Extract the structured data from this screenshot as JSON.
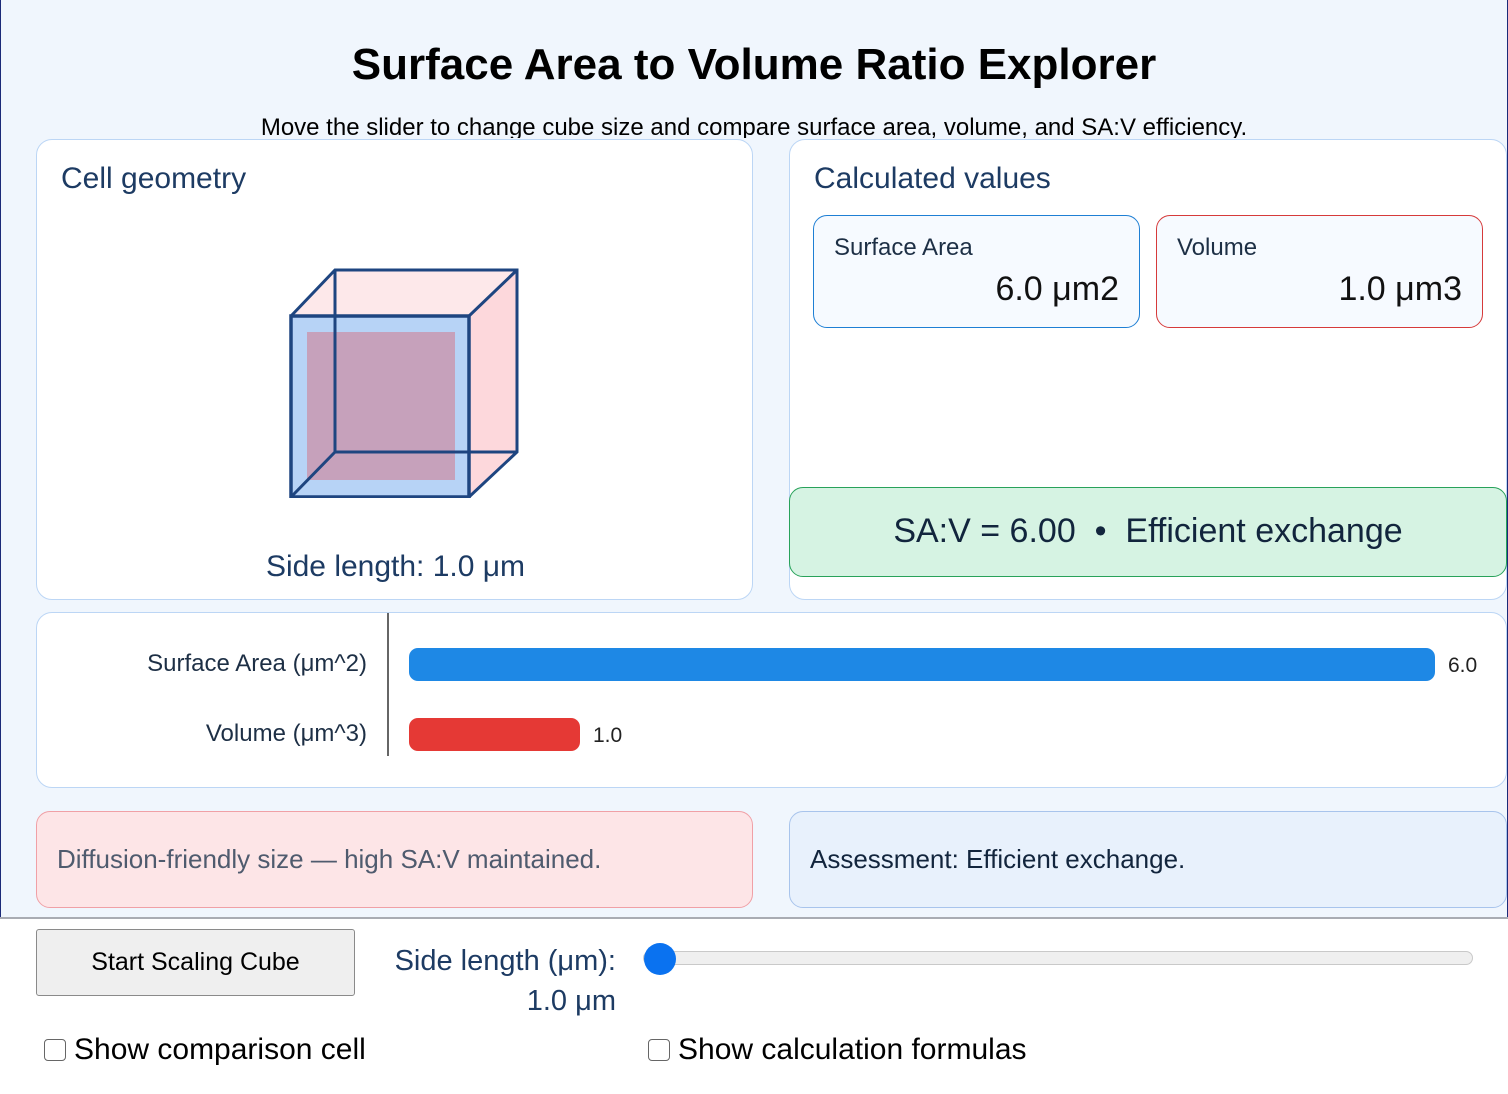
{
  "header": {
    "title": "Surface Area to Volume Ratio Explorer",
    "subtitle": "Move the slider to change cube size and compare surface area, volume, and SA:V efficiency."
  },
  "geometry": {
    "title": "Cell geometry",
    "side_caption": "Side length: 1.0 μm",
    "front_face_color": "#b7d3f6",
    "side_face_color": "#fde0e2",
    "edge_color": "#1e4580"
  },
  "values": {
    "title": "Calculated values",
    "surface_area": {
      "label": "Surface Area",
      "value": "6.0 μm2",
      "border_color": "#1e7fd4"
    },
    "volume": {
      "label": "Volume",
      "value": "1.0 μm3",
      "border_color": "#d63a3a"
    },
    "ratio_text": "SA:V = 6.00  •  Efficient exchange",
    "ratio_color": "#28a25a"
  },
  "bars": {
    "max_value": 6.0,
    "items": [
      {
        "label": "Surface Area (μm^2)",
        "value": 6.0,
        "value_label": "6.0",
        "color": "#1e88e5"
      },
      {
        "label": "Volume (μm^3)",
        "value": 1.0,
        "value_label": "1.0",
        "color": "#e53935"
      }
    ]
  },
  "notes": {
    "left": "Diffusion-friendly size — high SA:V maintained.",
    "right": "Assessment: Efficient exchange."
  },
  "controls": {
    "start_button": "Start Scaling Cube",
    "slider_label": "Side length (μm):",
    "slider_value": "1.0 μm",
    "slider_min": 1,
    "slider_max": 10,
    "slider_current": 1.0,
    "checkbox_comparison": {
      "label": "Show comparison cell",
      "checked": false
    },
    "checkbox_formulas": {
      "label": "Show calculation formulas",
      "checked": false
    }
  }
}
